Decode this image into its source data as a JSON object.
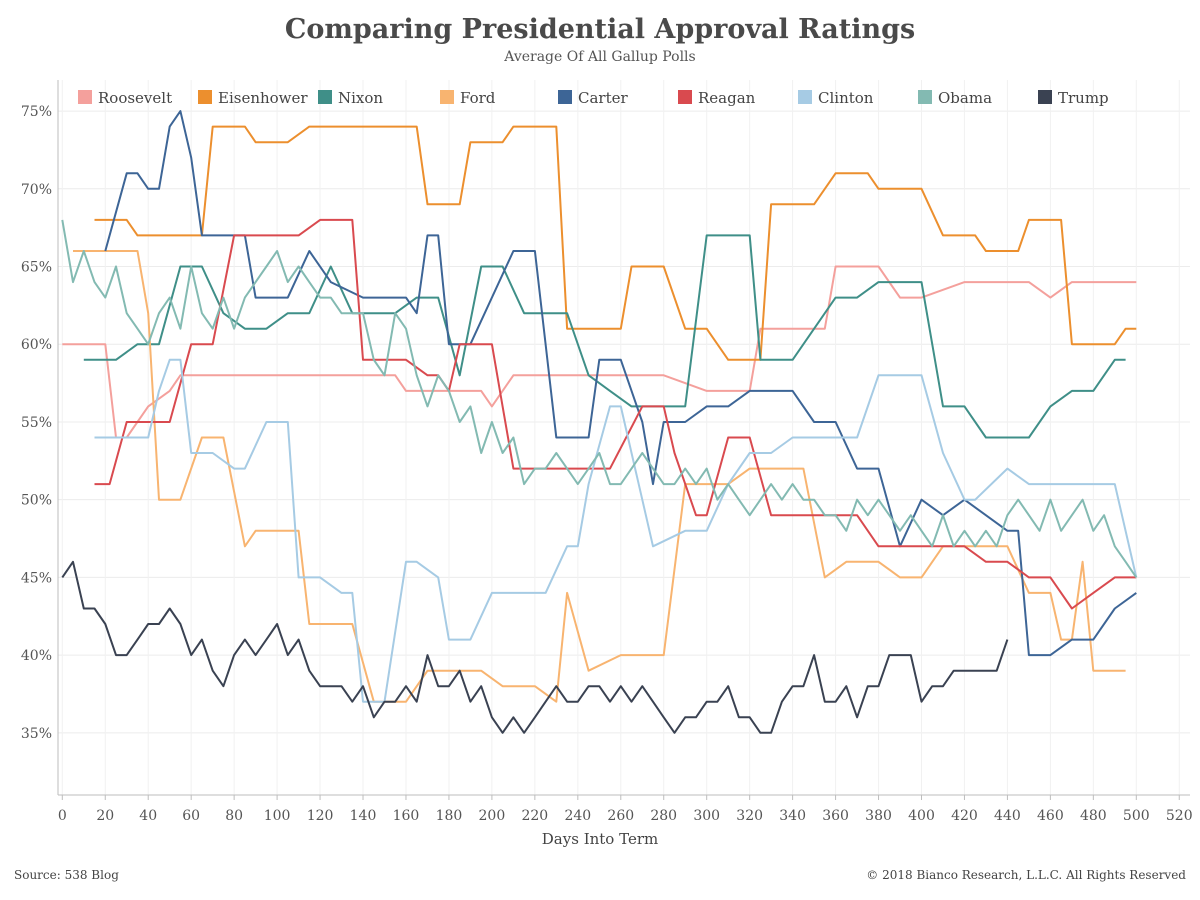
{
  "chart_data": {
    "type": "line",
    "title": "Comparing Presidential Approval Ratings",
    "subtitle": "Average Of All Gallup Polls",
    "xlabel": "Days Into Term",
    "ylabel": "",
    "xlim": [
      -2,
      525
    ],
    "ylim": [
      31,
      77
    ],
    "x_ticks": [
      0,
      20,
      40,
      60,
      80,
      100,
      120,
      140,
      160,
      180,
      200,
      220,
      240,
      260,
      280,
      300,
      320,
      340,
      360,
      380,
      400,
      420,
      440,
      460,
      480,
      500,
      520
    ],
    "y_ticks": [
      35,
      40,
      45,
      50,
      55,
      60,
      65,
      70,
      75
    ],
    "y_tick_labels": [
      "35%",
      "40%",
      "45%",
      "50%",
      "55%",
      "60%",
      "65%",
      "70%",
      "75%"
    ],
    "grid": true,
    "legend_position": "top",
    "source": "Source: 538 Blog",
    "copyright": "© 2018 Bianco Research, L.L.C. All Rights Reserved",
    "series": [
      {
        "name": "Roosevelt",
        "color": "#f4a09c",
        "x": [
          0,
          20,
          25,
          30,
          40,
          50,
          55,
          65,
          100,
          155,
          160,
          165,
          195,
          200,
          210,
          230,
          280,
          300,
          310,
          320,
          325,
          340,
          355,
          360,
          380,
          390,
          400,
          420,
          450,
          460,
          470,
          500
        ],
        "y": [
          60,
          60,
          54,
          54,
          56,
          57,
          58,
          58,
          58,
          58,
          57,
          57,
          57,
          56,
          58,
          58,
          58,
          57,
          57,
          57,
          61,
          61,
          61,
          65,
          65,
          63,
          63,
          64,
          64,
          63,
          64,
          64
        ]
      },
      {
        "name": "Eisenhower",
        "color": "#ec8f2e",
        "x": [
          15,
          30,
          35,
          65,
          70,
          85,
          90,
          105,
          115,
          165,
          170,
          185,
          190,
          205,
          210,
          230,
          235,
          260,
          265,
          280,
          290,
          300,
          310,
          325,
          330,
          350,
          360,
          375,
          380,
          400,
          410,
          425,
          430,
          445,
          450,
          465,
          470,
          490,
          495,
          500
        ],
        "y": [
          68,
          68,
          67,
          67,
          74,
          74,
          73,
          73,
          74,
          74,
          69,
          69,
          73,
          73,
          74,
          74,
          61,
          61,
          65,
          65,
          61,
          61,
          59,
          59,
          69,
          69,
          71,
          71,
          70,
          70,
          67,
          67,
          66,
          66,
          68,
          68,
          60,
          60,
          61,
          61
        ]
      },
      {
        "name": "Nixon",
        "color": "#3f8f88",
        "x": [
          10,
          25,
          35,
          45,
          55,
          65,
          75,
          85,
          95,
          105,
          115,
          125,
          135,
          145,
          155,
          165,
          175,
          185,
          195,
          205,
          215,
          225,
          235,
          245,
          255,
          265,
          280,
          290,
          300,
          310,
          320,
          325,
          340,
          350,
          360,
          370,
          380,
          390,
          400,
          410,
          420,
          430,
          440,
          450,
          460,
          470,
          480,
          490,
          495
        ],
        "y": [
          59,
          59,
          60,
          60,
          65,
          65,
          62,
          61,
          61,
          62,
          62,
          65,
          62,
          62,
          62,
          63,
          63,
          58,
          65,
          65,
          62,
          62,
          62,
          58,
          57,
          56,
          56,
          56,
          67,
          67,
          67,
          59,
          59,
          61,
          63,
          63,
          64,
          64,
          64,
          56,
          56,
          54,
          54,
          54,
          56,
          57,
          57,
          59,
          59
        ]
      },
      {
        "name": "Ford",
        "color": "#f8b470",
        "x": [
          5,
          15,
          25,
          35,
          40,
          45,
          55,
          65,
          75,
          85,
          90,
          110,
          115,
          135,
          145,
          160,
          170,
          180,
          195,
          205,
          210,
          220,
          230,
          235,
          245,
          260,
          270,
          280,
          290,
          300,
          310,
          320,
          330,
          345,
          355,
          365,
          380,
          390,
          400,
          410,
          420,
          440,
          450,
          460,
          465,
          470,
          475,
          480,
          495
        ],
        "y": [
          66,
          66,
          66,
          66,
          62,
          50,
          50,
          54,
          54,
          47,
          48,
          48,
          42,
          42,
          37,
          37,
          39,
          39,
          39,
          38,
          38,
          38,
          37,
          44,
          39,
          40,
          40,
          40,
          51,
          51,
          51,
          52,
          52,
          52,
          45,
          46,
          46,
          45,
          45,
          47,
          47,
          47,
          44,
          44,
          41,
          41,
          46,
          39,
          39
        ]
      },
      {
        "name": "Carter",
        "color": "#3d6596",
        "x": [
          20,
          30,
          35,
          40,
          45,
          50,
          55,
          60,
          65,
          70,
          75,
          80,
          85,
          90,
          105,
          115,
          125,
          140,
          160,
          165,
          170,
          175,
          180,
          185,
          190,
          210,
          220,
          230,
          240,
          245,
          250,
          260,
          270,
          275,
          280,
          290,
          300,
          310,
          320,
          330,
          340,
          350,
          360,
          370,
          380,
          390,
          400,
          410,
          420,
          440,
          445,
          450,
          460,
          470,
          480,
          490,
          500
        ],
        "y": [
          66,
          71,
          71,
          70,
          70,
          74,
          75,
          72,
          67,
          67,
          67,
          67,
          67,
          63,
          63,
          66,
          64,
          63,
          63,
          62,
          67,
          67,
          60,
          60,
          60,
          66,
          66,
          54,
          54,
          54,
          59,
          59,
          55,
          51,
          55,
          55,
          56,
          56,
          57,
          57,
          57,
          55,
          55,
          52,
          52,
          47,
          50,
          49,
          50,
          48,
          48,
          40,
          40,
          41,
          41,
          43,
          44
        ]
      },
      {
        "name": "Reagan",
        "color": "#d94a4f",
        "x": [
          15,
          22,
          30,
          40,
          50,
          60,
          70,
          80,
          90,
          110,
          120,
          135,
          140,
          150,
          160,
          170,
          175,
          180,
          185,
          200,
          205,
          210,
          230,
          240,
          255,
          270,
          280,
          285,
          295,
          300,
          310,
          320,
          330,
          340,
          350,
          370,
          380,
          420,
          430,
          440,
          450,
          460,
          470,
          480,
          490,
          500
        ],
        "y": [
          51,
          51,
          55,
          55,
          55,
          60,
          60,
          67,
          67,
          67,
          68,
          68,
          59,
          59,
          59,
          58,
          58,
          57,
          60,
          60,
          56,
          52,
          52,
          52,
          52,
          56,
          56,
          53,
          49,
          49,
          54,
          54,
          49,
          49,
          49,
          49,
          47,
          47,
          46,
          46,
          45,
          45,
          43,
          44,
          45,
          45
        ]
      },
      {
        "name": "Clinton",
        "color": "#a6cbe4",
        "x": [
          15,
          40,
          45,
          50,
          55,
          60,
          70,
          80,
          85,
          95,
          105,
          110,
          120,
          130,
          135,
          140,
          150,
          160,
          165,
          175,
          180,
          190,
          200,
          205,
          225,
          235,
          240,
          245,
          255,
          260,
          270,
          275,
          290,
          300,
          310,
          320,
          330,
          340,
          350,
          370,
          380,
          400,
          410,
          420,
          425,
          440,
          450,
          460,
          480,
          490,
          500
        ],
        "y": [
          54,
          54,
          57,
          59,
          59,
          53,
          53,
          52,
          52,
          55,
          55,
          45,
          45,
          44,
          44,
          37,
          37,
          46,
          46,
          45,
          41,
          41,
          44,
          44,
          44,
          47,
          47,
          51,
          56,
          56,
          50,
          47,
          48,
          48,
          51,
          53,
          53,
          54,
          54,
          54,
          58,
          58,
          53,
          50,
          50,
          52,
          51,
          51,
          51,
          51,
          45
        ]
      },
      {
        "name": "Obama",
        "color": "#83bab2",
        "x": [
          0,
          5,
          10,
          15,
          20,
          25,
          30,
          35,
          40,
          45,
          50,
          55,
          60,
          65,
          70,
          75,
          80,
          85,
          90,
          95,
          100,
          105,
          110,
          115,
          120,
          125,
          130,
          135,
          140,
          145,
          150,
          155,
          160,
          165,
          170,
          175,
          180,
          185,
          190,
          195,
          200,
          205,
          210,
          215,
          220,
          225,
          230,
          235,
          240,
          245,
          250,
          255,
          260,
          265,
          270,
          275,
          280,
          285,
          290,
          295,
          300,
          305,
          310,
          315,
          320,
          325,
          330,
          335,
          340,
          345,
          350,
          355,
          360,
          365,
          370,
          375,
          380,
          385,
          390,
          395,
          400,
          405,
          410,
          415,
          420,
          425,
          430,
          435,
          440,
          445,
          450,
          455,
          460,
          465,
          470,
          475,
          480,
          485,
          490,
          495,
          500
        ],
        "y": [
          68,
          64,
          66,
          64,
          63,
          65,
          62,
          61,
          60,
          62,
          63,
          61,
          65,
          62,
          61,
          63,
          61,
          63,
          64,
          65,
          66,
          64,
          65,
          64,
          63,
          63,
          62,
          62,
          62,
          59,
          58,
          62,
          61,
          58,
          56,
          58,
          57,
          55,
          56,
          53,
          55,
          53,
          54,
          51,
          52,
          52,
          53,
          52,
          51,
          52,
          53,
          51,
          51,
          52,
          53,
          52,
          51,
          51,
          52,
          51,
          52,
          50,
          51,
          50,
          49,
          50,
          51,
          50,
          51,
          50,
          50,
          49,
          49,
          48,
          50,
          49,
          50,
          49,
          48,
          49,
          48,
          47,
          49,
          47,
          48,
          47,
          48,
          47,
          49,
          50,
          49,
          48,
          50,
          48,
          49,
          50,
          48,
          49,
          47,
          46,
          45
        ]
      },
      {
        "name": "Trump",
        "color": "#3a4252",
        "x": [
          0,
          5,
          10,
          15,
          20,
          25,
          30,
          35,
          40,
          45,
          50,
          55,
          60,
          65,
          70,
          75,
          80,
          85,
          90,
          95,
          100,
          105,
          110,
          115,
          120,
          125,
          130,
          135,
          140,
          145,
          150,
          155,
          160,
          165,
          170,
          175,
          180,
          185,
          190,
          195,
          200,
          205,
          210,
          215,
          220,
          225,
          230,
          235,
          240,
          245,
          250,
          255,
          260,
          265,
          270,
          275,
          280,
          285,
          290,
          295,
          300,
          305,
          310,
          315,
          320,
          325,
          330,
          335,
          340,
          345,
          350,
          355,
          360,
          365,
          370,
          375,
          380,
          385,
          390,
          395,
          400,
          405,
          410,
          415,
          420,
          425,
          430,
          435,
          440
        ],
        "y": [
          45,
          46,
          43,
          43,
          42,
          40,
          40,
          41,
          42,
          42,
          43,
          42,
          40,
          41,
          39,
          38,
          40,
          41,
          40,
          41,
          42,
          40,
          41,
          39,
          38,
          38,
          38,
          37,
          38,
          36,
          37,
          37,
          38,
          37,
          40,
          38,
          38,
          39,
          37,
          38,
          36,
          35,
          36,
          35,
          36,
          37,
          38,
          37,
          37,
          38,
          38,
          37,
          38,
          37,
          38,
          37,
          36,
          35,
          36,
          36,
          37,
          37,
          38,
          36,
          36,
          35,
          35,
          37,
          38,
          38,
          40,
          37,
          37,
          38,
          36,
          38,
          38,
          40,
          40,
          40,
          37,
          38,
          38,
          39,
          39,
          39,
          39,
          39,
          41
        ]
      }
    ]
  }
}
